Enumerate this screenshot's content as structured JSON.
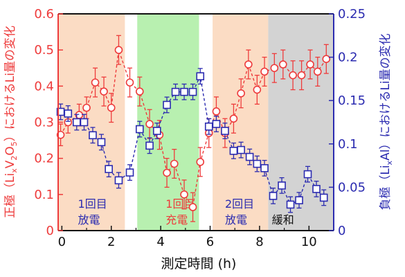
{
  "chart_data": {
    "type": "scatter",
    "xlabel": "測定時間 (h)",
    "ylabel_left_parts": [
      "正極（Li",
      "x",
      "V",
      "2",
      "O",
      "5",
      "）における",
      "Li",
      "量の変化"
    ],
    "ylabel_right_parts": [
      "負極（Li",
      "x",
      "Al）における",
      "Li",
      "量の変化"
    ],
    "xlim": [
      -0.15,
      11.0
    ],
    "xticks": [
      0,
      2,
      4,
      6,
      8,
      10
    ],
    "ylim_left": [
      0,
      0.6
    ],
    "yticks_left": [
      "0",
      "0.1",
      "0.2",
      "0.3",
      "0.4",
      "0.5",
      "0.6"
    ],
    "ylim_right": [
      0,
      0.25
    ],
    "yticks_right": [
      "0",
      "0.05",
      "0.1",
      "0.15",
      "0.2",
      "0.25"
    ],
    "colors": {
      "positive": "#ee3b3b",
      "negative": "#2b2bb0",
      "discharge_band": "#fbdcc4",
      "charge_band": "#b8f0b0",
      "relax_band": "#d3d3d3",
      "axis_left": "#ee3b3b",
      "axis_right": "#2b2bb0"
    },
    "phases": [
      {
        "name": "discharge1",
        "start": -0.15,
        "end": 2.55,
        "color": "#fbdcc4",
        "label": [
          "1回目",
          "放電"
        ],
        "label_x": 0.65,
        "label_color": "#2b2bb0"
      },
      {
        "name": "charge1",
        "start": 3.05,
        "end": 5.55,
        "color": "#b8f0b0",
        "label": [
          "1回目",
          "充電"
        ],
        "label_x": 4.2,
        "label_color": "#ee3b3b"
      },
      {
        "name": "discharge2",
        "start": 6.1,
        "end": 8.35,
        "color": "#fbdcc4",
        "label": [
          "2回目",
          "放電"
        ],
        "label_x": 6.6,
        "label_color": "#2b2bb0"
      },
      {
        "name": "relax",
        "start": 8.35,
        "end": 11.0,
        "color": "#d3d3d3",
        "label": [
          "緩和"
        ],
        "label_x": 8.5,
        "label_color": "#111111"
      }
    ],
    "series": [
      {
        "name": "positive",
        "axis": "left",
        "marker": "circle",
        "color": "#ee3b3b",
        "x": [
          -0.05,
          0.25,
          0.7,
          1.0,
          1.35,
          1.7,
          2.0,
          2.3,
          2.75,
          3.15,
          3.55,
          3.95,
          4.25,
          4.55,
          4.95,
          5.3,
          5.6,
          5.95,
          6.25,
          6.6,
          6.95,
          7.25,
          7.55,
          7.9,
          8.2,
          8.6,
          8.95,
          9.35,
          9.7,
          10.05,
          10.35,
          10.7
        ],
        "values": [
          0.265,
          0.3,
          0.32,
          0.34,
          0.41,
          0.385,
          0.34,
          0.5,
          0.41,
          0.385,
          0.295,
          0.265,
          0.16,
          0.185,
          0.1,
          0.065,
          0.19,
          0.27,
          0.33,
          0.27,
          0.31,
          0.38,
          0.46,
          0.39,
          0.44,
          0.45,
          0.46,
          0.43,
          0.43,
          0.46,
          0.44,
          0.475
        ],
        "err": [
          0.03,
          0.03,
          0.03,
          0.03,
          0.04,
          0.04,
          0.04,
          0.04,
          0.04,
          0.04,
          0.04,
          0.04,
          0.04,
          0.04,
          0.04,
          0.04,
          0.04,
          0.04,
          0.04,
          0.04,
          0.04,
          0.04,
          0.04,
          0.04,
          0.04,
          0.04,
          0.04,
          0.04,
          0.04,
          0.04,
          0.04,
          0.04
        ]
      },
      {
        "name": "negative",
        "axis": "right",
        "marker": "square",
        "color": "#2b2bb0",
        "x": [
          -0.05,
          0.25,
          0.6,
          0.9,
          1.25,
          1.6,
          1.9,
          2.3,
          2.75,
          3.15,
          3.55,
          3.85,
          4.25,
          4.6,
          4.95,
          5.3,
          5.6,
          5.95,
          6.25,
          6.6,
          6.95,
          7.25,
          7.6,
          7.9,
          8.2,
          8.55,
          8.9,
          9.25,
          9.6,
          9.95,
          10.3,
          10.6
        ],
        "values": [
          0.137,
          0.135,
          0.125,
          0.125,
          0.11,
          0.102,
          0.071,
          0.058,
          0.067,
          0.117,
          0.098,
          0.115,
          0.145,
          0.16,
          0.16,
          0.16,
          0.178,
          0.12,
          0.123,
          0.115,
          0.092,
          0.093,
          0.085,
          0.077,
          0.072,
          0.04,
          0.052,
          0.03,
          0.035,
          0.065,
          0.048,
          0.038
        ],
        "err": [
          0.009,
          0.009,
          0.009,
          0.009,
          0.009,
          0.009,
          0.009,
          0.009,
          0.009,
          0.009,
          0.009,
          0.009,
          0.009,
          0.009,
          0.009,
          0.009,
          0.009,
          0.009,
          0.009,
          0.009,
          0.009,
          0.009,
          0.009,
          0.009,
          0.009,
          0.009,
          0.009,
          0.009,
          0.009,
          0.009,
          0.009,
          0.009
        ]
      }
    ]
  }
}
